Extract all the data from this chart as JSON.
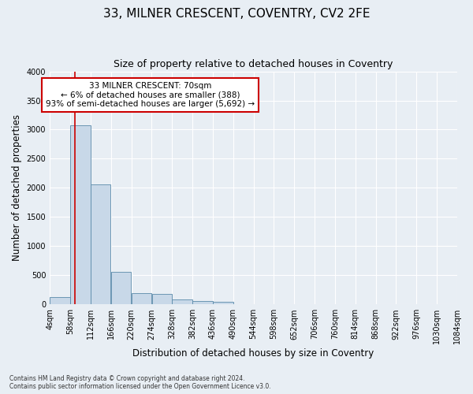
{
  "title": "33, MILNER CRESCENT, COVENTRY, CV2 2FE",
  "subtitle": "Size of property relative to detached houses in Coventry",
  "xlabel": "Distribution of detached houses by size in Coventry",
  "ylabel": "Number of detached properties",
  "property_size": 70,
  "bin_edges": [
    4,
    58,
    112,
    166,
    220,
    274,
    328,
    382,
    436,
    490,
    544,
    598,
    652,
    706,
    760,
    814,
    868,
    922,
    976,
    1030,
    1084
  ],
  "bar_heights": [
    130,
    3080,
    2060,
    560,
    190,
    185,
    80,
    55,
    50,
    0,
    0,
    0,
    0,
    0,
    0,
    0,
    0,
    0,
    0,
    0
  ],
  "bar_color": "#c8d8e8",
  "bar_edge_color": "#5a8aaa",
  "vline_color": "#cc0000",
  "annotation_text": "33 MILNER CRESCENT: 70sqm\n← 6% of detached houses are smaller (388)\n93% of semi-detached houses are larger (5,692) →",
  "annotation_box_color": "#ffffff",
  "annotation_box_edge_color": "#cc0000",
  "ylim": [
    0,
    4000
  ],
  "yticks": [
    0,
    500,
    1000,
    1500,
    2000,
    2500,
    3000,
    3500,
    4000
  ],
  "footnote": "Contains HM Land Registry data © Crown copyright and database right 2024.\nContains public sector information licensed under the Open Government Licence v3.0.",
  "background_color": "#e8eef4",
  "plot_bg_color": "#e8eef4",
  "grid_color": "#ffffff",
  "title_fontsize": 11,
  "subtitle_fontsize": 9,
  "tick_label_fontsize": 7,
  "axis_label_fontsize": 8.5,
  "annotation_fontsize": 7.5,
  "footnote_fontsize": 5.5
}
